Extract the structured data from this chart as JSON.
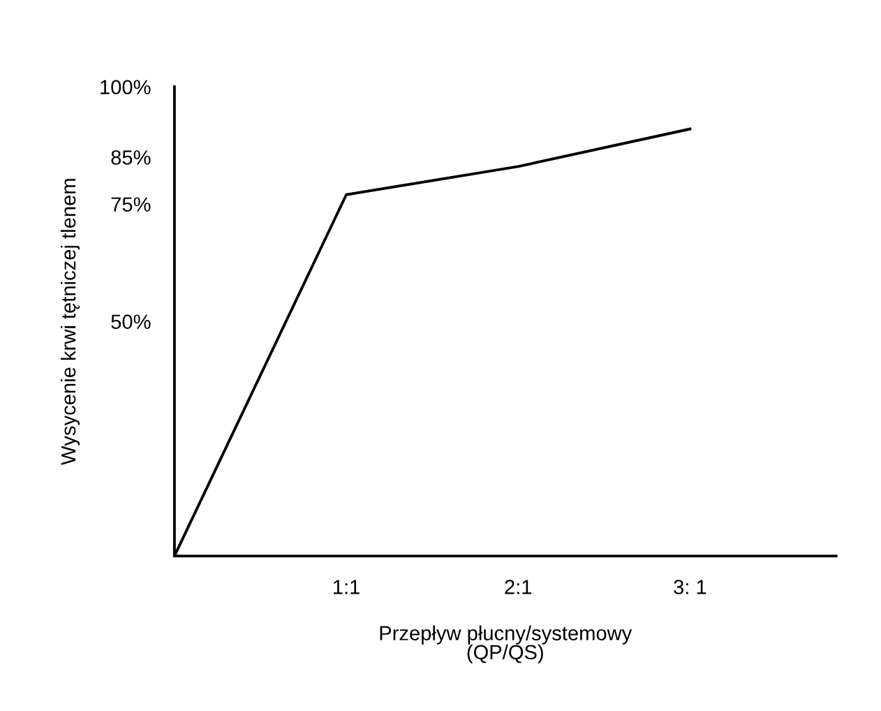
{
  "chart_data": {
    "type": "line",
    "xlabel": "Przepływ płucny/systemowy\n(QP/QS)",
    "ylabel": "Wysycenie krwi tętniczej tlenem",
    "categories": [
      null,
      "1:1",
      "2:1",
      "3: 1"
    ],
    "series": [
      {
        "color": "#000000",
        "values": [
          0,
          77,
          83,
          91
        ]
      }
    ],
    "ylim": [
      0,
      100
    ],
    "yticks": [
      {
        "value": 50,
        "label": "50%"
      },
      {
        "value": 75,
        "label": "75%"
      },
      {
        "value": 85,
        "label": "85%"
      },
      {
        "value": 100,
        "label": "100%"
      }
    ],
    "grid": false,
    "marker": "none",
    "line_style": "solid"
  }
}
